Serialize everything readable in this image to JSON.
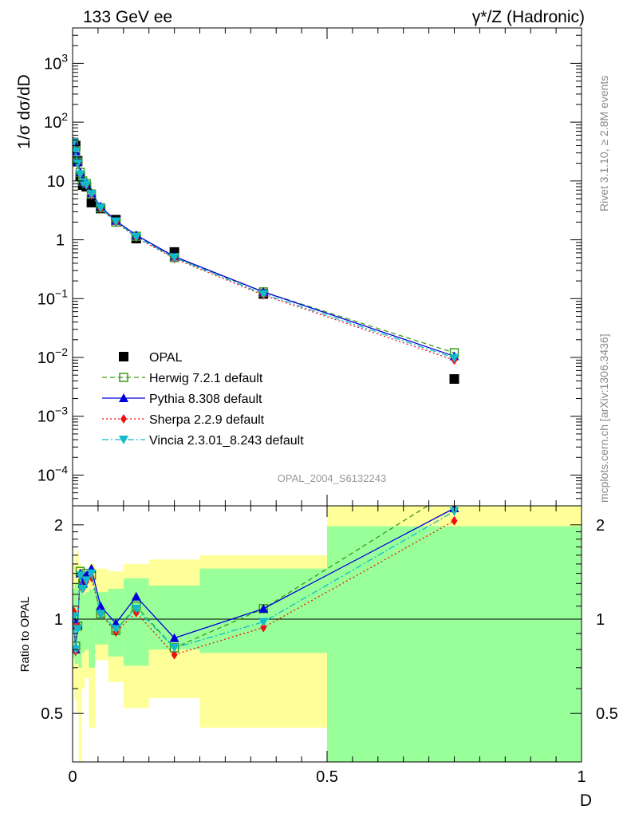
{
  "header": {
    "left": "133 GeV ee",
    "right": "γ*/Z (Hadronic)"
  },
  "side": {
    "rivet": "Rivet 3.1.10, ≥ 2.8M events",
    "mcplots": "mcplots.cern.ch [arXiv:1306.3436]"
  },
  "watermark": "OPAL_2004_S6132243",
  "colors": {
    "data": "#000000",
    "herwig": "#3a9a1a",
    "pythia": "#0000dd",
    "sherpa": "#ee1111",
    "vincia": "#11bbcc",
    "band_outer": "#ffff99",
    "band_inner": "#99ff99"
  },
  "chart_data": [
    {
      "type": "scatter",
      "scale": "log",
      "ylabel": "1/σ dσ/dD",
      "xlim": [
        0,
        1
      ],
      "ylim": [
        3e-05,
        4000
      ],
      "y_ticks": [
        {
          "v": 0.0001,
          "base": "10",
          "exp": "−4"
        },
        {
          "v": 0.001,
          "base": "10",
          "exp": "−3"
        },
        {
          "v": 0.01,
          "base": "10",
          "exp": "−2"
        },
        {
          "v": 0.1,
          "base": "10",
          "exp": "−1"
        },
        {
          "v": 1,
          "base": "1",
          "exp": ""
        },
        {
          "v": 10,
          "base": "10",
          "exp": ""
        },
        {
          "v": 100,
          "base": "10",
          "exp": "2"
        },
        {
          "v": 1000,
          "base": "10",
          "exp": "3"
        }
      ],
      "legend": [
        {
          "key": "data",
          "label": "OPAL"
        },
        {
          "key": "herwig",
          "label": "Herwig 7.2.1 default"
        },
        {
          "key": "pythia",
          "label": "Pythia 8.308 default"
        },
        {
          "key": "sherpa",
          "label": "Sherpa 2.2.9 default"
        },
        {
          "key": "vincia",
          "label": "Vincia 2.3.01_8.243 default"
        }
      ],
      "series": [
        {
          "name": "OPAL",
          "key": "data",
          "x": [
            0.002,
            0.006,
            0.01,
            0.015,
            0.02,
            0.027,
            0.037,
            0.055,
            0.085,
            0.125,
            0.2,
            0.375,
            0.75
          ],
          "y": [
            45,
            40,
            22,
            12,
            8.5,
            8.0,
            4.3,
            3.4,
            2.2,
            1.05,
            0.62,
            0.12,
            0.0043
          ]
        },
        {
          "name": "Herwig 7.2.1 default",
          "key": "herwig",
          "x": [
            0.002,
            0.006,
            0.01,
            0.015,
            0.02,
            0.027,
            0.037,
            0.055,
            0.085,
            0.125,
            0.2,
            0.375,
            0.75
          ],
          "y": [
            45,
            33,
            21,
            14,
            10,
            9.0,
            6.0,
            3.5,
            2.0,
            1.15,
            0.5,
            0.13,
            0.012
          ]
        },
        {
          "name": "Pythia 8.308 default",
          "key": "pythia",
          "x": [
            0.002,
            0.006,
            0.01,
            0.015,
            0.02,
            0.027,
            0.037,
            0.055,
            0.085,
            0.125,
            0.2,
            0.375,
            0.75
          ],
          "y": [
            45,
            32,
            21,
            14,
            10,
            9.0,
            6.2,
            3.7,
            2.1,
            1.2,
            0.52,
            0.13,
            0.0105
          ]
        },
        {
          "name": "Sherpa 2.2.9 default",
          "key": "sherpa",
          "x": [
            0.002,
            0.006,
            0.01,
            0.015,
            0.02,
            0.027,
            0.037,
            0.055,
            0.085,
            0.125,
            0.2,
            0.375,
            0.75
          ],
          "y": [
            47,
            33,
            20,
            13,
            9.5,
            8.5,
            5.8,
            3.4,
            2.0,
            1.1,
            0.48,
            0.115,
            0.009
          ]
        },
        {
          "name": "Vincia 2.3.01_8.243 default",
          "key": "vincia",
          "x": [
            0.002,
            0.006,
            0.01,
            0.015,
            0.02,
            0.027,
            0.037,
            0.055,
            0.085,
            0.125,
            0.2,
            0.375,
            0.75
          ],
          "y": [
            46,
            32,
            20,
            13,
            9.5,
            8.6,
            6.0,
            3.5,
            2.05,
            1.12,
            0.5,
            0.12,
            0.0098
          ]
        }
      ]
    },
    {
      "type": "line",
      "scale": "log",
      "ylabel": "Ratio to OPAL",
      "xlabel": "D",
      "xlim": [
        0,
        1
      ],
      "ylim": [
        0.35,
        2.3
      ],
      "x_ticks": [
        {
          "v": 0,
          "label": "0"
        },
        {
          "v": 0.5,
          "label": "0.5"
        },
        {
          "v": 1,
          "label": "1"
        }
      ],
      "y_ticks": [
        {
          "v": 0.5,
          "label": "0.5"
        },
        {
          "v": 1,
          "label": "1"
        },
        {
          "v": 2,
          "label": "2"
        }
      ],
      "bins": [
        {
          "x0": 0.0,
          "x1": 0.004,
          "outer": [
            0.6,
            1.5
          ],
          "inner": [
            0.75,
            1.25
          ]
        },
        {
          "x0": 0.004,
          "x1": 0.008,
          "outer": [
            0.55,
            1.6
          ],
          "inner": [
            0.72,
            1.3
          ]
        },
        {
          "x0": 0.008,
          "x1": 0.012,
          "outer": [
            0.5,
            1.65
          ],
          "inner": [
            0.72,
            1.3
          ]
        },
        {
          "x0": 0.012,
          "x1": 0.018,
          "outer": [
            0.35,
            1.5
          ],
          "inner": [
            0.7,
            1.25
          ]
        },
        {
          "x0": 0.018,
          "x1": 0.024,
          "outer": [
            0.6,
            1.45
          ],
          "inner": [
            0.78,
            1.2
          ]
        },
        {
          "x0": 0.024,
          "x1": 0.032,
          "outer": [
            0.65,
            1.35
          ],
          "inner": [
            0.8,
            1.22
          ]
        },
        {
          "x0": 0.032,
          "x1": 0.044,
          "outer": [
            0.45,
            1.5
          ],
          "inner": [
            0.7,
            1.25
          ]
        },
        {
          "x0": 0.044,
          "x1": 0.07,
          "outer": [
            0.74,
            1.45
          ],
          "inner": [
            0.83,
            1.22
          ]
        },
        {
          "x0": 0.07,
          "x1": 0.1,
          "outer": [
            0.63,
            1.42
          ],
          "inner": [
            0.76,
            1.25
          ]
        },
        {
          "x0": 0.1,
          "x1": 0.15,
          "outer": [
            0.52,
            1.5
          ],
          "inner": [
            0.71,
            1.35
          ]
        },
        {
          "x0": 0.15,
          "x1": 0.25,
          "outer": [
            0.56,
            1.55
          ],
          "inner": [
            0.8,
            1.28
          ]
        },
        {
          "x0": 0.25,
          "x1": 0.5,
          "outer": [
            0.45,
            1.6
          ],
          "inner": [
            0.78,
            1.45
          ]
        },
        {
          "x0": 0.5,
          "x1": 1.0,
          "outer": [
            0.35,
            2.3
          ],
          "inner": [
            0.35,
            1.98
          ]
        }
      ],
      "series": [
        {
          "name": "Herwig 7.2.1 default",
          "key": "herwig",
          "x": [
            0.002,
            0.006,
            0.01,
            0.015,
            0.02,
            0.027,
            0.037,
            0.055,
            0.085,
            0.125,
            0.2,
            0.375,
            0.75
          ],
          "y": [
            1.0,
            0.82,
            0.95,
            1.42,
            1.3,
            1.4,
            1.38,
            1.04,
            0.92,
            1.1,
            0.81,
            1.08,
            2.6
          ]
        },
        {
          "name": "Pythia 8.308 default",
          "key": "pythia",
          "x": [
            0.002,
            0.006,
            0.01,
            0.015,
            0.02,
            0.027,
            0.037,
            0.055,
            0.085,
            0.125,
            0.2,
            0.375,
            0.75
          ],
          "y": [
            1.0,
            0.8,
            0.96,
            1.4,
            1.3,
            1.38,
            1.45,
            1.1,
            0.97,
            1.18,
            0.87,
            1.08,
            2.26
          ]
        },
        {
          "name": "Sherpa 2.2.9 default",
          "key": "sherpa",
          "x": [
            0.002,
            0.006,
            0.01,
            0.015,
            0.02,
            0.027,
            0.037,
            0.055,
            0.085,
            0.125,
            0.2,
            0.375,
            0.75
          ],
          "y": [
            1.06,
            0.79,
            0.95,
            1.38,
            1.25,
            1.32,
            1.36,
            1.04,
            0.91,
            1.05,
            0.77,
            0.94,
            2.06
          ]
        },
        {
          "name": "Vincia 2.3.01_8.243 default",
          "key": "vincia",
          "x": [
            0.002,
            0.006,
            0.01,
            0.015,
            0.02,
            0.027,
            0.037,
            0.055,
            0.085,
            0.125,
            0.2,
            0.375,
            0.75
          ],
          "y": [
            1.02,
            0.8,
            0.93,
            1.38,
            1.25,
            1.33,
            1.4,
            1.04,
            0.93,
            1.08,
            0.81,
            0.98,
            2.21
          ]
        }
      ]
    }
  ]
}
